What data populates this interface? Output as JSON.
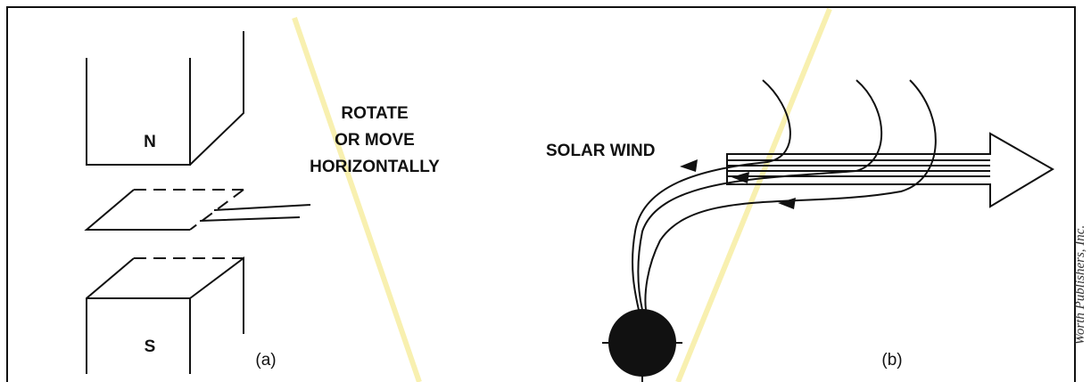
{
  "panel_a": {
    "magnet_labels": [
      "N",
      "S"
    ],
    "instruction": [
      "ROTATE",
      "OR MOVE",
      "HORIZONTALLY"
    ],
    "caption": "(a)"
  },
  "panel_b": {
    "label": "SOLAR WIND",
    "caption": "(b)"
  },
  "credit": "Worth Publishers, Inc."
}
